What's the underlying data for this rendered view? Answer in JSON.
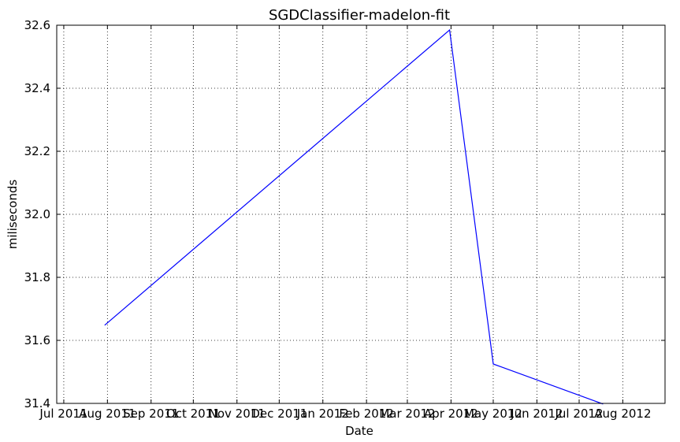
{
  "chart_data": {
    "type": "line",
    "title": "SGDClassifier-madelon-fit",
    "xlabel": "Date",
    "ylabel": "miliseconds",
    "grid": true,
    "xlim": [
      "2011-06-26",
      "2012-08-31"
    ],
    "ylim": [
      31.4,
      32.6
    ],
    "x_ticks": [
      {
        "date": "2011-07-01",
        "label": "Jul 2011"
      },
      {
        "date": "2011-08-01",
        "label": "Aug 2011"
      },
      {
        "date": "2011-09-01",
        "label": "Sep 2011"
      },
      {
        "date": "2011-10-01",
        "label": "Oct 2011"
      },
      {
        "date": "2011-11-01",
        "label": "Nov 2011"
      },
      {
        "date": "2011-12-01",
        "label": "Dec 2011"
      },
      {
        "date": "2012-01-01",
        "label": "Jan 2012"
      },
      {
        "date": "2012-02-01",
        "label": "Feb 2012"
      },
      {
        "date": "2012-03-01",
        "label": "Mar 2012"
      },
      {
        "date": "2012-04-01",
        "label": "Apr 2012"
      },
      {
        "date": "2012-05-01",
        "label": "May 2012"
      },
      {
        "date": "2012-06-01",
        "label": "Jun 2012"
      },
      {
        "date": "2012-07-01",
        "label": "Jul 2012"
      },
      {
        "date": "2012-08-01",
        "label": "Aug 2012"
      }
    ],
    "y_ticks": [
      {
        "value": 31.4,
        "label": "31.4"
      },
      {
        "value": 31.6,
        "label": "31.6"
      },
      {
        "value": 31.8,
        "label": "31.8"
      },
      {
        "value": 32.0,
        "label": "32.0"
      },
      {
        "value": 32.2,
        "label": "32.2"
      },
      {
        "value": 32.4,
        "label": "32.4"
      },
      {
        "value": 32.6,
        "label": "32.6"
      }
    ],
    "series": [
      {
        "color": "#0000ff",
        "x": [
          "2011-07-30",
          "2012-03-31",
          "2012-05-01",
          "2012-07-18"
        ],
        "y": [
          31.648,
          32.585,
          31.525,
          31.398
        ]
      }
    ]
  }
}
